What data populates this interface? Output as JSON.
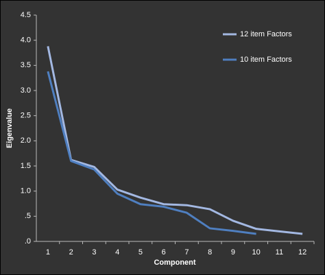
{
  "chart_data": {
    "type": "line",
    "x_label": "Component",
    "y_label": "Eigenvalue",
    "categories": [
      "1",
      "2",
      "3",
      "4",
      "5",
      "6",
      "7",
      "8",
      "9",
      "10",
      "11",
      "12"
    ],
    "series": [
      {
        "name": "12 item Factors",
        "color": "#a3b8e2",
        "values": [
          3.88,
          1.62,
          1.48,
          1.03,
          0.87,
          0.74,
          0.72,
          0.64,
          0.41,
          0.25,
          0.2,
          0.15
        ]
      },
      {
        "name": "10 item Factors",
        "color": "#4f7fc0",
        "values": [
          3.38,
          1.6,
          1.43,
          0.95,
          0.74,
          0.69,
          0.57,
          0.26,
          0.21,
          0.15,
          null,
          null
        ]
      }
    ],
    "ylim": [
      0,
      4.5
    ],
    "yticks": [
      {
        "value": 0,
        "label": ".0"
      },
      {
        "value": 0.5,
        "label": ".5"
      },
      {
        "value": 1,
        "label": "1.0"
      },
      {
        "value": 1.5,
        "label": "1.5"
      },
      {
        "value": 2,
        "label": "2.0"
      },
      {
        "value": 2.5,
        "label": "2.5"
      },
      {
        "value": 3,
        "label": "3.0"
      },
      {
        "value": 3.5,
        "label": "3.5"
      },
      {
        "value": 4,
        "label": "4.0"
      },
      {
        "value": 4.5,
        "label": "4.5"
      }
    ],
    "grid": false,
    "legend": "top-right"
  }
}
